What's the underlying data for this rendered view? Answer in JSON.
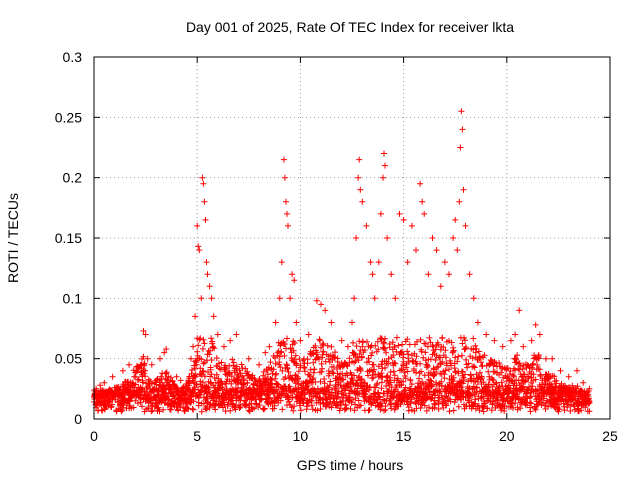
{
  "chart_data": {
    "type": "scatter",
    "title": "Day 001 of 2025, Rate Of TEC Index for receiver lkta",
    "xlabel": "GPS time / hours",
    "ylabel": "ROTI / TECUs",
    "xlim": [
      0,
      25
    ],
    "ylim": [
      0,
      0.3
    ],
    "xticks": [
      0,
      5,
      10,
      15,
      20,
      25
    ],
    "xtick_labels": [
      "0",
      "5",
      "10",
      "15",
      "20",
      "25"
    ],
    "yticks": [
      0,
      0.05,
      0.1,
      0.15,
      0.2,
      0.25,
      0.3
    ],
    "ytick_labels": [
      "0",
      "0.05",
      "0.1",
      "0.15",
      "0.2",
      "0.25",
      "0.3"
    ],
    "grid": true,
    "marker": "plus",
    "color": "#ff0000",
    "series": [
      {
        "name": "ROTI",
        "points": [
          [
            0.1,
            0.025
          ],
          [
            0.3,
            0.028
          ],
          [
            0.5,
            0.03
          ],
          [
            0.9,
            0.035
          ],
          [
            1.4,
            0.04
          ],
          [
            1.7,
            0.045
          ],
          [
            2.4,
            0.073
          ],
          [
            2.5,
            0.07
          ],
          [
            2.6,
            0.05
          ],
          [
            2.8,
            0.045
          ],
          [
            3.2,
            0.05
          ],
          [
            3.4,
            0.055
          ],
          [
            3.5,
            0.058
          ],
          [
            4.0,
            0.035
          ],
          [
            4.2,
            0.032
          ],
          [
            4.7,
            0.05
          ],
          [
            4.8,
            0.06
          ],
          [
            4.9,
            0.085
          ],
          [
            5.0,
            0.16
          ],
          [
            5.05,
            0.143
          ],
          [
            5.1,
            0.14
          ],
          [
            5.2,
            0.1
          ],
          [
            5.25,
            0.2
          ],
          [
            5.3,
            0.195
          ],
          [
            5.35,
            0.18
          ],
          [
            5.4,
            0.165
          ],
          [
            5.45,
            0.13
          ],
          [
            5.5,
            0.12
          ],
          [
            5.6,
            0.11
          ],
          [
            5.7,
            0.1
          ],
          [
            5.8,
            0.085
          ],
          [
            6.0,
            0.07
          ],
          [
            6.3,
            0.06
          ],
          [
            6.6,
            0.065
          ],
          [
            6.9,
            0.07
          ],
          [
            7.5,
            0.05
          ],
          [
            8.0,
            0.045
          ],
          [
            8.3,
            0.055
          ],
          [
            8.5,
            0.06
          ],
          [
            8.8,
            0.08
          ],
          [
            9.0,
            0.1
          ],
          [
            9.1,
            0.13
          ],
          [
            9.2,
            0.215
          ],
          [
            9.25,
            0.2
          ],
          [
            9.3,
            0.18
          ],
          [
            9.35,
            0.17
          ],
          [
            9.4,
            0.16
          ],
          [
            9.5,
            0.1
          ],
          [
            9.6,
            0.12
          ],
          [
            9.7,
            0.115
          ],
          [
            9.8,
            0.08
          ],
          [
            10.0,
            0.065
          ],
          [
            10.4,
            0.07
          ],
          [
            10.8,
            0.098
          ],
          [
            11.0,
            0.095
          ],
          [
            11.2,
            0.09
          ],
          [
            11.5,
            0.08
          ],
          [
            12.0,
            0.065
          ],
          [
            12.3,
            0.06
          ],
          [
            12.5,
            0.08
          ],
          [
            12.6,
            0.1
          ],
          [
            12.7,
            0.15
          ],
          [
            12.8,
            0.2
          ],
          [
            12.85,
            0.215
          ],
          [
            12.9,
            0.19
          ],
          [
            13.0,
            0.18
          ],
          [
            13.2,
            0.16
          ],
          [
            13.4,
            0.13
          ],
          [
            13.5,
            0.12
          ],
          [
            13.6,
            0.1
          ],
          [
            13.8,
            0.13
          ],
          [
            13.9,
            0.17
          ],
          [
            14.0,
            0.2
          ],
          [
            14.05,
            0.22
          ],
          [
            14.1,
            0.21
          ],
          [
            14.2,
            0.15
          ],
          [
            14.4,
            0.12
          ],
          [
            14.6,
            0.1
          ],
          [
            14.8,
            0.17
          ],
          [
            15.0,
            0.165
          ],
          [
            15.2,
            0.13
          ],
          [
            15.4,
            0.16
          ],
          [
            15.6,
            0.14
          ],
          [
            15.8,
            0.195
          ],
          [
            15.9,
            0.18
          ],
          [
            16.0,
            0.17
          ],
          [
            16.2,
            0.12
          ],
          [
            16.4,
            0.15
          ],
          [
            16.6,
            0.14
          ],
          [
            16.8,
            0.11
          ],
          [
            17.0,
            0.13
          ],
          [
            17.2,
            0.12
          ],
          [
            17.4,
            0.15
          ],
          [
            17.5,
            0.165
          ],
          [
            17.6,
            0.14
          ],
          [
            17.7,
            0.18
          ],
          [
            17.75,
            0.225
          ],
          [
            17.8,
            0.255
          ],
          [
            17.85,
            0.24
          ],
          [
            17.9,
            0.19
          ],
          [
            18.0,
            0.16
          ],
          [
            18.2,
            0.12
          ],
          [
            18.4,
            0.1
          ],
          [
            18.6,
            0.08
          ],
          [
            19.0,
            0.07
          ],
          [
            19.4,
            0.065
          ],
          [
            19.8,
            0.06
          ],
          [
            20.2,
            0.065
          ],
          [
            20.4,
            0.07
          ],
          [
            20.6,
            0.09
          ],
          [
            20.8,
            0.06
          ],
          [
            21.2,
            0.065
          ],
          [
            21.4,
            0.078
          ],
          [
            21.6,
            0.07
          ],
          [
            21.9,
            0.05
          ],
          [
            22.2,
            0.05
          ],
          [
            22.6,
            0.04
          ],
          [
            23.0,
            0.035
          ],
          [
            23.4,
            0.04
          ],
          [
            23.7,
            0.03
          ],
          [
            24.0,
            0.025
          ]
        ]
      }
    ]
  }
}
